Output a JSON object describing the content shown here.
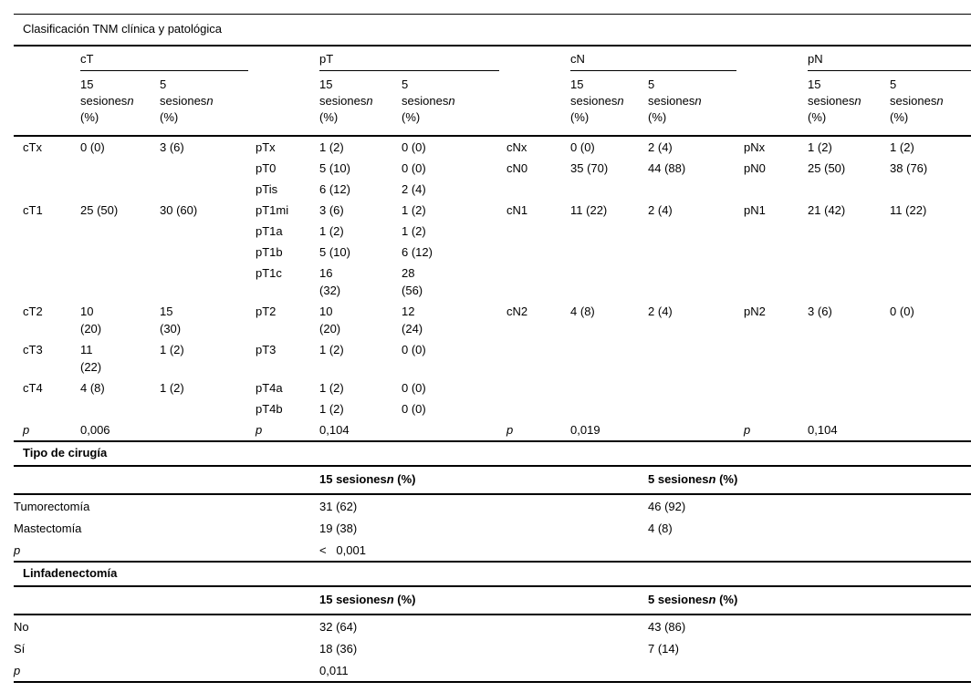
{
  "title": "Clasificación TNM clínica y patológica",
  "col_header": {
    "n15": {
      "pre": "15 sesiones",
      "n": "n",
      "post": " (%)"
    },
    "n5": {
      "pre": "5 sesiones",
      "n": "n",
      "post": " (%)"
    }
  },
  "tnm": {
    "groups": [
      {
        "label": "cT"
      },
      {
        "label": "pT"
      },
      {
        "label": "cN"
      },
      {
        "label": "pN"
      }
    ],
    "rows": [
      [
        "cTx",
        "0 (0)",
        "3 (6)",
        "pTx",
        "1 (2)",
        "0 (0)",
        "cNx",
        "0 (0)",
        "2 (4)",
        "pNx",
        "1 (2)",
        "1 (2)"
      ],
      [
        "",
        "",
        "",
        "pT0",
        "5 (10)",
        "0 (0)",
        "cN0",
        "35 (70)",
        "44 (88)",
        "pN0",
        "25 (50)",
        "38 (76)"
      ],
      [
        "",
        "",
        "",
        "pTis",
        "6 (12)",
        "2 (4)",
        "",
        "",
        "",
        "",
        "",
        ""
      ],
      [
        "cT1",
        "25 (50)",
        "30 (60)",
        "pT1mi",
        "3 (6)",
        "1 (2)",
        "cN1",
        "11 (22)",
        "2 (4)",
        "pN1",
        "21 (42)",
        "11 (22)"
      ],
      [
        "",
        "",
        "",
        "pT1a",
        "1 (2)",
        "1 (2)",
        "",
        "",
        "",
        "",
        "",
        ""
      ],
      [
        "",
        "",
        "",
        "pT1b",
        "5 (10)",
        "6 (12)",
        "",
        "",
        "",
        "",
        "",
        ""
      ],
      [
        "",
        "",
        "",
        "pT1c",
        "16\n(32)",
        "28\n(56)",
        "",
        "",
        "",
        "",
        "",
        ""
      ],
      [
        "cT2",
        "10\n(20)",
        "15\n(30)",
        "pT2",
        "10\n(20)",
        "12\n(24)",
        "cN2",
        "4 (8)",
        "2 (4)",
        "pN2",
        "3 (6)",
        "0 (0)"
      ],
      [
        "cT3",
        "11\n(22)",
        "1 (2)",
        "pT3",
        "1 (2)",
        "0 (0)",
        "",
        "",
        "",
        "",
        "",
        ""
      ],
      [
        "cT4",
        "4 (8)",
        "1 (2)",
        "pT4a",
        "1 (2)",
        "0 (0)",
        "",
        "",
        "",
        "",
        "",
        ""
      ],
      [
        "",
        "",
        "",
        "pT4b",
        "1 (2)",
        "0 (0)",
        "",
        "",
        "",
        "",
        "",
        ""
      ],
      [
        "p",
        "0,006",
        "",
        "p",
        "0,104",
        "",
        "p",
        "0,019",
        "",
        "p",
        "0,104",
        ""
      ]
    ]
  },
  "sections": [
    {
      "title": "Tipo de cirugía",
      "rows": [
        {
          "label": "Tumorectomía",
          "v15": "31 (62)",
          "v5": "46 (92)"
        },
        {
          "label": "Mastectomía",
          "v15": "19 (38)",
          "v5": "4 (8)"
        },
        {
          "label": "p",
          "v15": "<   0,001",
          "v5": ""
        }
      ]
    },
    {
      "title": "Linfadenectomía",
      "rows": [
        {
          "label": "No",
          "v15": "32 (64)",
          "v5": "43 (86)"
        },
        {
          "label": "Sí",
          "v15": "18 (36)",
          "v5": "7 (14)"
        },
        {
          "label": "p",
          "v15": "0,011",
          "v5": ""
        }
      ]
    }
  ]
}
